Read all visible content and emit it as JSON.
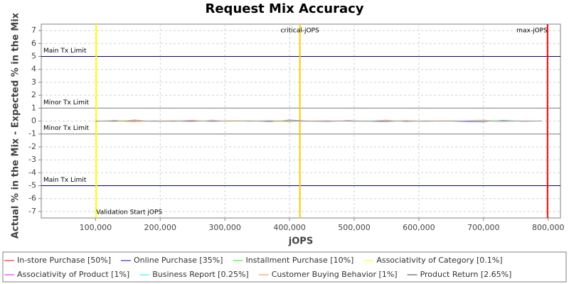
{
  "chart_data": {
    "type": "line",
    "title": "Request Mix Accuracy",
    "x_label": "jOPS",
    "y_label": "Actual % in the Mix - Expected % in the Mix",
    "xlim": [
      16000,
      819000
    ],
    "ylim": [
      -7.5,
      7.5
    ],
    "xticks": [
      {
        "value": 100000,
        "label": "100,000"
      },
      {
        "value": 200000,
        "label": "200,000"
      },
      {
        "value": 300000,
        "label": "300,000"
      },
      {
        "value": 400000,
        "label": "400,000"
      },
      {
        "value": 500000,
        "label": "500,000"
      },
      {
        "value": 600000,
        "label": "600,000"
      },
      {
        "value": 700000,
        "label": "700,000"
      },
      {
        "value": 800000,
        "label": "800,000"
      }
    ],
    "yticks": [
      -7,
      -6,
      -5,
      -4,
      -3,
      -2,
      -1,
      0,
      1,
      2,
      3,
      4,
      5,
      6,
      7
    ],
    "grid": true,
    "limits": [
      {
        "label": "Main Tx Limit",
        "y": 5,
        "color": "#000080"
      },
      {
        "label": "Minor Tx Limit",
        "y": 1,
        "color": "#808080"
      },
      {
        "label": "Minor Tx Limit",
        "y": -1,
        "color": "#808080"
      },
      {
        "label": "Main Tx Limit",
        "y": -5,
        "color": "#000080"
      }
    ],
    "markers": [
      {
        "label": "Validation Start jOPS",
        "x": 101000,
        "color": "#ffff00",
        "label_position": "bottom"
      },
      {
        "label": "critical-jOPS",
        "x": 416000,
        "color": "#ffc800",
        "label_position": "top"
      },
      {
        "label": "max-jOPS",
        "x": 799000,
        "color": "#ff0000",
        "label_position": "top"
      }
    ],
    "x": [
      100000,
      130000,
      160000,
      190000,
      220000,
      250000,
      280000,
      310000,
      340000,
      370000,
      400000,
      430000,
      460000,
      490000,
      520000,
      550000,
      580000,
      610000,
      640000,
      670000,
      700000,
      730000,
      760000,
      790000
    ],
    "series": [
      {
        "name": "In-store Purchase [50%]",
        "color": "#ff8080",
        "values": [
          0.02,
          -0.05,
          0.08,
          -0.03,
          0.01,
          0.06,
          -0.04,
          0.03,
          -0.02,
          0.05,
          -0.06,
          0.02,
          0.04,
          -0.03,
          0.01,
          0.07,
          -0.05,
          0.02,
          -0.01,
          0.03,
          0.05,
          -0.04,
          0.02,
          0.01
        ]
      },
      {
        "name": "Online Purchase [35%]",
        "color": "#8080ff",
        "values": [
          -0.03,
          0.06,
          -0.08,
          0.04,
          -0.02,
          -0.05,
          0.07,
          -0.03,
          0.02,
          -0.06,
          0.08,
          -0.01,
          -0.04,
          0.05,
          -0.02,
          -0.06,
          0.04,
          -0.03,
          0.02,
          -0.05,
          -0.07,
          0.06,
          -0.02,
          0.01
        ]
      },
      {
        "name": "Installment Purchase [10%]",
        "color": "#80ff80",
        "values": [
          0.01,
          0.03,
          0.02,
          -0.02,
          0.04,
          -0.01,
          0.02,
          0.03,
          -0.03,
          0.01,
          0.02,
          -0.02,
          0.03,
          0.01,
          -0.01,
          0.02,
          0.01,
          -0.02,
          0.03,
          0.01,
          -0.03,
          0.02,
          0.01,
          -0.01
        ]
      },
      {
        "name": "Associativity of Category [0.1%]",
        "color": "#ffff80",
        "values": [
          0.0,
          -0.02,
          -0.1,
          0.02,
          -0.05,
          0.01,
          0.03,
          -0.04,
          0.02,
          -0.01,
          -0.08,
          0.03,
          0.01,
          -0.02,
          0.04,
          -0.03,
          0.02,
          0.01,
          -0.03,
          0.02,
          -0.01,
          -0.09,
          0.01,
          0.02
        ]
      },
      {
        "name": "Associativity of Product [1%]",
        "color": "#ff80ff",
        "values": [
          0.01,
          -0.01,
          0.02,
          0.0,
          -0.02,
          0.01,
          0.0,
          0.02,
          -0.01,
          0.01,
          0.0,
          -0.02,
          0.01,
          0.02,
          -0.01,
          0.0,
          0.01,
          -0.01,
          0.02,
          0.0,
          -0.01,
          0.01,
          0.0,
          0.01
        ]
      },
      {
        "name": "Business Report [0.25%]",
        "color": "#80ffff",
        "values": [
          0.0,
          0.01,
          -0.01,
          0.02,
          0.0,
          -0.01,
          0.01,
          0.0,
          0.01,
          -0.02,
          0.01,
          0.0,
          -0.01,
          0.01,
          0.02,
          0.0,
          -0.01,
          0.01,
          0.0,
          -0.01,
          0.02,
          -0.06,
          0.01,
          0.0
        ]
      },
      {
        "name": "Customer Buying Behavior [1%]",
        "color": "#ffc0a0",
        "values": [
          0.01,
          0.02,
          -0.03,
          0.01,
          0.03,
          -0.02,
          0.01,
          0.02,
          -0.01,
          0.03,
          0.01,
          -0.02,
          0.02,
          0.0,
          -0.03,
          0.01,
          0.02,
          -0.01,
          0.01,
          0.03,
          0.08,
          -0.02,
          0.01,
          0.0
        ]
      },
      {
        "name": "Product Return [2.65%]",
        "color": "#a0a0a0",
        "values": [
          -0.01,
          0.0,
          0.01,
          -0.02,
          0.01,
          0.02,
          -0.01,
          0.0,
          0.02,
          -0.01,
          0.0,
          0.01,
          -0.02,
          0.01,
          0.0,
          -0.01,
          0.02,
          0.0,
          -0.01,
          0.01,
          0.0,
          0.02,
          -0.01,
          0.0
        ]
      }
    ]
  }
}
